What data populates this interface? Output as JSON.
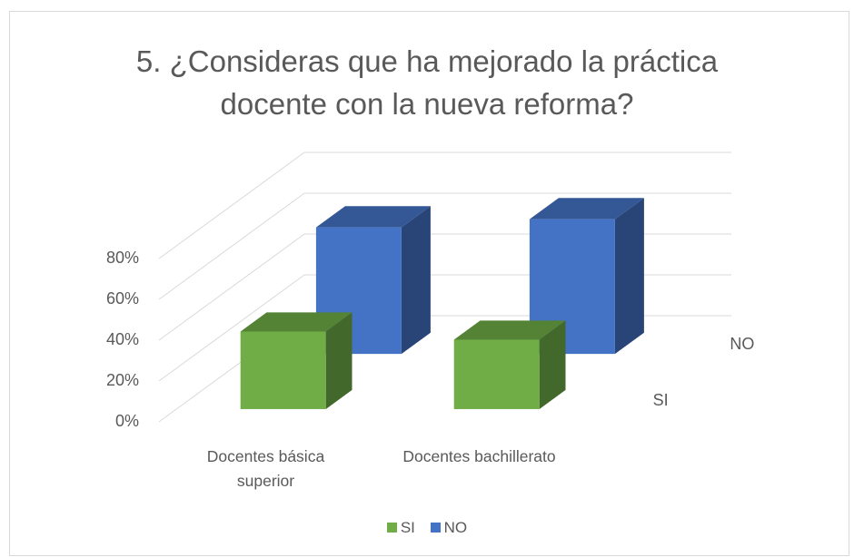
{
  "chart_data": {
    "type": "bar3d",
    "title": "5. ¿Consideras que ha mejorado la práctica docente  con la nueva reforma?",
    "categories": [
      "Docentes básica superior",
      "Docentes bachillerato"
    ],
    "series": [
      {
        "name": "SI",
        "color": "#70ad47",
        "values": [
          38,
          34
        ]
      },
      {
        "name": "NO",
        "color": "#4472c4",
        "values": [
          62,
          66
        ]
      }
    ],
    "ylim": [
      0,
      80
    ],
    "yticks": [
      {
        "value": 0,
        "label": "0%"
      },
      {
        "value": 20,
        "label": "20%"
      },
      {
        "value": 40,
        "label": "40%"
      },
      {
        "value": 60,
        "label": "60%"
      },
      {
        "value": 80,
        "label": "80%"
      }
    ],
    "grid": true,
    "legend": "bottom"
  }
}
